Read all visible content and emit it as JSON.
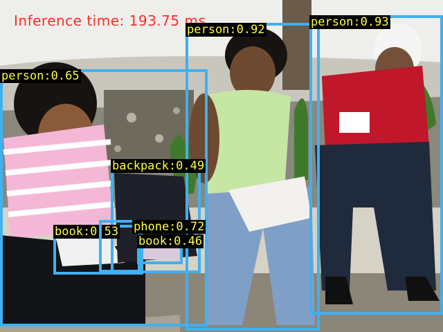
{
  "inference_text": "Inference time: 193.75 ms",
  "box_color": "#40b0f0",
  "label_text_color": "#ffff40",
  "label_bg_color": "#000000",
  "detections": [
    {
      "label": "person:0.65"
    },
    {
      "label": "person:0.92"
    },
    {
      "label": "person:0.93"
    },
    {
      "label": "backpack:0.49"
    },
    {
      "label": "book:0.53"
    },
    {
      "label": "phone:0.72"
    },
    {
      "label": "book:0.46"
    }
  ]
}
